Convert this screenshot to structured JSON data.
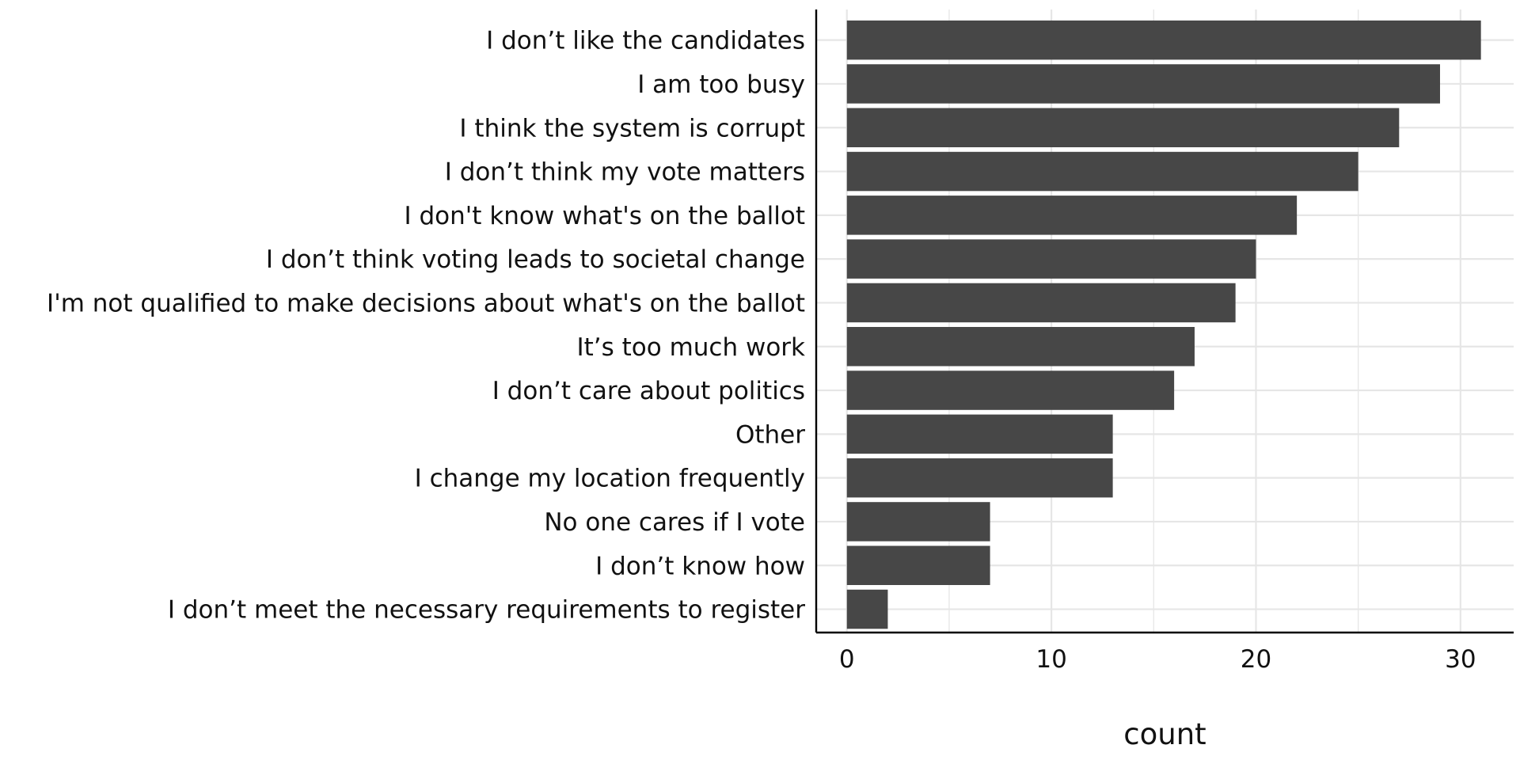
{
  "chart_data": {
    "type": "bar",
    "orientation": "horizontal",
    "title": "",
    "xlabel": "count",
    "ylabel": "",
    "xlim": [
      -1.5,
      32.6
    ],
    "xticks": [
      0,
      10,
      20,
      30
    ],
    "grid": true,
    "bar_color": "#474747",
    "grid_color": "#e6e6e6",
    "categories": [
      "I don’t like the candidates",
      "I am too busy",
      "I think the system is corrupt",
      "I don’t think my vote matters",
      "I don't know what's on the ballot",
      "I don’t think voting leads to societal change",
      "I'm not qualified to make decisions about what's on the ballot",
      "It’s too much work",
      "I don’t care about politics",
      "Other",
      "I change my location frequently",
      "No one cares if I vote",
      "I don’t know how",
      "I don’t meet the necessary requirements to register"
    ],
    "values": [
      31,
      29,
      27,
      25,
      22,
      20,
      19,
      17,
      16,
      13,
      13,
      7,
      7,
      2
    ]
  }
}
